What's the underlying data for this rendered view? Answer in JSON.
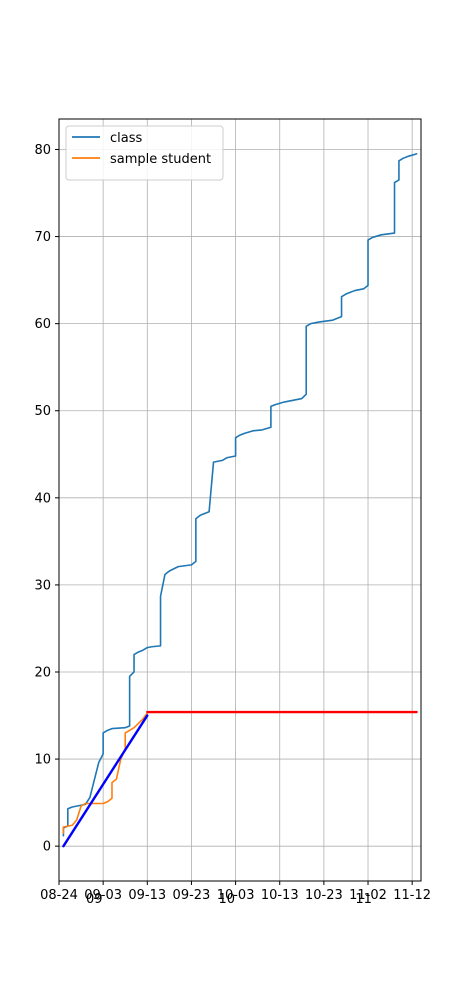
{
  "chart_data": {
    "type": "line",
    "x_axis": {
      "type": "date",
      "range": [
        "2023-08-24",
        "2023-11-14"
      ],
      "ticks": [
        {
          "x": "2023-08-24",
          "label": "08-24"
        },
        {
          "x": "2023-09-03",
          "label": "09-03"
        },
        {
          "x": "2023-09-13",
          "label": "09-13"
        },
        {
          "x": "2023-09-23",
          "label": "09-23"
        },
        {
          "x": "2023-10-03",
          "label": "10-03"
        },
        {
          "x": "2023-10-13",
          "label": "10-13"
        },
        {
          "x": "2023-10-23",
          "label": "10-23"
        },
        {
          "x": "2023-11-02",
          "label": "11-02"
        },
        {
          "x": "2023-11-12",
          "label": "11-12"
        }
      ],
      "month_labels": [
        {
          "x": "2023-09-01",
          "label": "09"
        },
        {
          "x": "2023-10-01",
          "label": "10"
        },
        {
          "x": "2023-11-01",
          "label": "11"
        }
      ]
    },
    "y_axis": {
      "range": [
        -4,
        83.5
      ],
      "ticks": [
        0,
        10,
        20,
        30,
        40,
        50,
        60,
        70,
        80
      ]
    },
    "grid": true,
    "legend_position": "top-left",
    "series": [
      {
        "name": "class",
        "color": "#1f77b4",
        "points": [
          [
            "2023-08-25",
            1.2
          ],
          [
            "2023-08-25",
            2.1
          ],
          [
            "2023-08-26",
            2.3
          ],
          [
            "2023-08-26",
            4.3
          ],
          [
            "2023-08-27",
            4.5
          ],
          [
            "2023-08-28",
            4.6
          ],
          [
            "2023-08-29",
            4.7
          ],
          [
            "2023-08-30",
            4.8
          ],
          [
            "2023-08-31",
            5.6
          ],
          [
            "2023-09-01",
            7.6
          ],
          [
            "2023-09-02",
            9.6
          ],
          [
            "2023-09-03",
            10.6
          ],
          [
            "2023-09-03",
            13.0
          ],
          [
            "2023-09-04",
            13.3
          ],
          [
            "2023-09-05",
            13.5
          ],
          [
            "2023-09-08",
            13.6
          ],
          [
            "2023-09-09",
            13.8
          ],
          [
            "2023-09-09",
            19.5
          ],
          [
            "2023-09-10",
            20.0
          ],
          [
            "2023-09-10",
            22.0
          ],
          [
            "2023-09-11",
            22.3
          ],
          [
            "2023-09-12",
            22.5
          ],
          [
            "2023-09-13",
            22.8
          ],
          [
            "2023-09-14",
            22.9
          ],
          [
            "2023-09-16",
            23.0
          ],
          [
            "2023-09-16",
            28.7
          ],
          [
            "2023-09-17",
            31.2
          ],
          [
            "2023-09-18",
            31.6
          ],
          [
            "2023-09-20",
            32.1
          ],
          [
            "2023-09-23",
            32.3
          ],
          [
            "2023-09-24",
            32.7
          ],
          [
            "2023-09-24",
            37.6
          ],
          [
            "2023-09-25",
            38.0
          ],
          [
            "2023-09-27",
            38.4
          ],
          [
            "2023-09-28",
            44.1
          ],
          [
            "2023-09-30",
            44.3
          ],
          [
            "2023-10-01",
            44.6
          ],
          [
            "2023-10-03",
            44.8
          ],
          [
            "2023-10-03",
            46.9
          ],
          [
            "2023-10-04",
            47.2
          ],
          [
            "2023-10-05",
            47.4
          ],
          [
            "2023-10-07",
            47.7
          ],
          [
            "2023-10-09",
            47.8
          ],
          [
            "2023-10-11",
            48.1
          ],
          [
            "2023-10-11",
            50.5
          ],
          [
            "2023-10-12",
            50.7
          ],
          [
            "2023-10-14",
            51.0
          ],
          [
            "2023-10-16",
            51.2
          ],
          [
            "2023-10-18",
            51.4
          ],
          [
            "2023-10-19",
            51.9
          ],
          [
            "2023-10-19",
            59.7
          ],
          [
            "2023-10-20",
            60.0
          ],
          [
            "2023-10-22",
            60.2
          ],
          [
            "2023-10-25",
            60.4
          ],
          [
            "2023-10-27",
            60.8
          ],
          [
            "2023-10-27",
            63.1
          ],
          [
            "2023-10-28",
            63.4
          ],
          [
            "2023-10-30",
            63.8
          ],
          [
            "2023-11-01",
            64.0
          ],
          [
            "2023-11-02",
            64.4
          ],
          [
            "2023-11-02",
            69.6
          ],
          [
            "2023-11-03",
            69.9
          ],
          [
            "2023-11-05",
            70.2
          ],
          [
            "2023-11-08",
            70.4
          ],
          [
            "2023-11-08",
            76.2
          ],
          [
            "2023-11-09",
            76.5
          ],
          [
            "2023-11-09",
            78.7
          ],
          [
            "2023-11-10",
            79.0
          ],
          [
            "2023-11-11",
            79.2
          ],
          [
            "2023-11-13",
            79.5
          ]
        ]
      },
      {
        "name": "sample student",
        "color": "#ff7f0e",
        "points": [
          [
            "2023-08-25",
            1.5
          ],
          [
            "2023-08-25",
            2.2
          ],
          [
            "2023-08-27",
            2.4
          ],
          [
            "2023-08-28",
            3.0
          ],
          [
            "2023-08-29",
            4.6
          ],
          [
            "2023-08-30",
            4.9
          ],
          [
            "2023-09-03",
            4.9
          ],
          [
            "2023-09-04",
            5.1
          ],
          [
            "2023-09-05",
            5.5
          ],
          [
            "2023-09-05",
            7.3
          ],
          [
            "2023-09-06",
            7.7
          ],
          [
            "2023-09-07",
            10.0
          ],
          [
            "2023-09-08",
            11.2
          ],
          [
            "2023-09-08",
            13.0
          ],
          [
            "2023-09-10",
            13.6
          ],
          [
            "2023-09-12",
            14.6
          ],
          [
            "2023-09-13",
            15.3
          ]
        ]
      },
      {
        "color": "#0000ff",
        "points": [
          [
            "2023-08-25",
            0.0
          ],
          [
            "2023-09-13",
            15.0
          ]
        ]
      },
      {
        "color": "#ff0000",
        "points": [
          [
            "2023-09-13",
            15.4
          ],
          [
            "2023-11-13",
            15.4
          ]
        ]
      }
    ]
  }
}
